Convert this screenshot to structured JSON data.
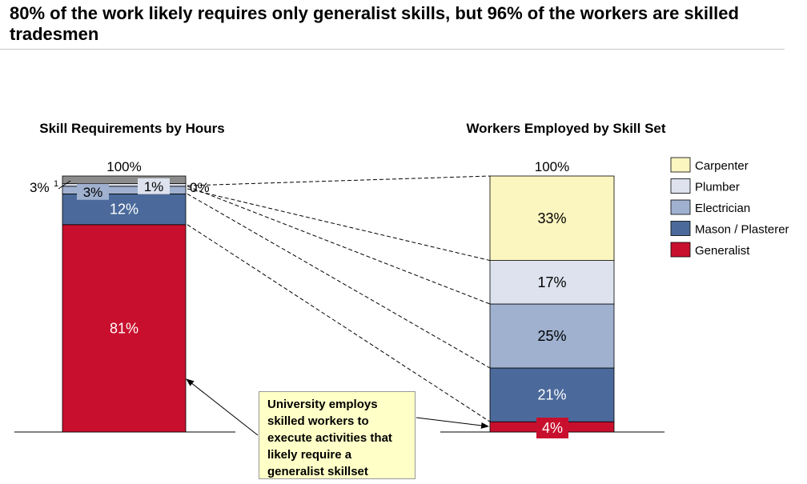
{
  "title": "80% of the work likely requires only generalist skills, but 96% of the workers are skilled tradesmen",
  "callout": "University employs skilled workers to execute activities that likely require a generalist skillset",
  "colors": {
    "Carpenter": "#fbf5c0",
    "Plumber": "#dde2ee",
    "Electrician": "#9fb1cf",
    "Mason / Plasterer": "#4b6a9b",
    "Generalist": "#c8102e",
    "Other": "#8c8c8c"
  },
  "chart_data": [
    {
      "type": "bar",
      "stacked": true,
      "title": "Skill Requirements by Hours",
      "total_label": "100%",
      "footnote_marker": "1",
      "series": [
        {
          "name": "Generalist",
          "value": 81,
          "label": "81%"
        },
        {
          "name": "Mason / Plasterer",
          "value": 12,
          "label": "12%"
        },
        {
          "name": "Electrician",
          "value": 3,
          "label": "3%"
        },
        {
          "name": "Plumber",
          "value": 1,
          "label": "1%"
        },
        {
          "name": "Carpenter",
          "value": 0,
          "label": "0%"
        },
        {
          "name": "Other",
          "value": 3,
          "label": "3%"
        }
      ]
    },
    {
      "type": "bar",
      "stacked": true,
      "title": "Workers Employed by Skill Set",
      "total_label": "100%",
      "series": [
        {
          "name": "Generalist",
          "value": 4,
          "label": "4%"
        },
        {
          "name": "Mason / Plasterer",
          "value": 21,
          "label": "21%"
        },
        {
          "name": "Electrician",
          "value": 25,
          "label": "25%"
        },
        {
          "name": "Plumber",
          "value": 17,
          "label": "17%"
        },
        {
          "name": "Carpenter",
          "value": 33,
          "label": "33%"
        }
      ]
    }
  ],
  "legend": [
    "Carpenter",
    "Plumber",
    "Electrician",
    "Mason / Plasterer",
    "Generalist"
  ]
}
